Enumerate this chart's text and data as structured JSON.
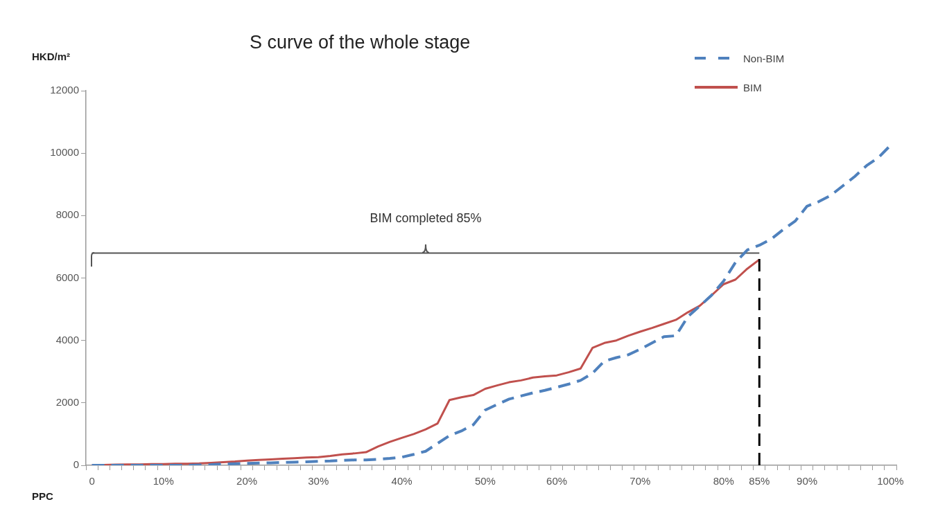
{
  "chart_data": {
    "type": "line",
    "title": "S curve of the whole stage",
    "xlabel": "PPC",
    "ylabel": "HKD/m²",
    "categories": [
      "0",
      null,
      null,
      null,
      null,
      null,
      "10%",
      null,
      null,
      null,
      null,
      null,
      null,
      "20%",
      null,
      null,
      null,
      null,
      null,
      "30%",
      null,
      null,
      null,
      null,
      null,
      null,
      "40%",
      null,
      null,
      null,
      null,
      null,
      null,
      "50%",
      null,
      null,
      null,
      null,
      null,
      "60%",
      null,
      null,
      null,
      null,
      null,
      null,
      "70%",
      null,
      null,
      null,
      null,
      null,
      null,
      "80%",
      null,
      null,
      "85%",
      null,
      null,
      null,
      "90%",
      null,
      null,
      null,
      null,
      null,
      null,
      "100%"
    ],
    "series": [
      {
        "name": "Non-BIM",
        "color": "#4f81bd",
        "line_style": "dashed",
        "values": [
          0,
          0,
          0,
          0,
          0,
          0,
          0,
          0,
          0,
          10,
          20,
          40,
          50,
          60,
          70,
          80,
          90,
          100,
          110,
          130,
          140,
          160,
          170,
          170,
          190,
          220,
          260,
          350,
          450,
          700,
          950,
          1100,
          1300,
          1770,
          1950,
          2120,
          2220,
          2320,
          2400,
          2500,
          2600,
          2720,
          2950,
          3340,
          3450,
          3540,
          3720,
          3920,
          4120,
          4150,
          4760,
          5100,
          5450,
          5900,
          6500,
          6900,
          7050,
          7250,
          7550,
          7820,
          8300,
          8450,
          8650,
          8950,
          9250,
          9600,
          9860,
          10250
        ]
      },
      {
        "name": "BIM",
        "color": "#c0504d",
        "line_style": "solid",
        "values": [
          0,
          10,
          20,
          30,
          30,
          40,
          40,
          50,
          50,
          60,
          80,
          100,
          120,
          150,
          170,
          190,
          210,
          230,
          250,
          260,
          300,
          350,
          380,
          420,
          600,
          750,
          880,
          1000,
          1150,
          1340,
          2090,
          2180,
          2250,
          2450,
          2560,
          2660,
          2720,
          2810,
          2850,
          2880,
          2980,
          3100,
          3760,
          3920,
          4000,
          4150,
          4280,
          4400,
          4530,
          4660,
          4900,
          5110,
          5450,
          5800,
          5950,
          6300,
          6590,
          null,
          null,
          null,
          null,
          null,
          null,
          null,
          null,
          null,
          null,
          null
        ]
      },
      {
        "color": "#555555",
        "line_style": "solid",
        "values": [
          6800,
          6800,
          6800,
          6800,
          6800,
          6800,
          6800,
          6800,
          6800,
          6800,
          6800,
          6800,
          6800,
          6800,
          6800,
          6800,
          6800,
          6800,
          6800,
          6800,
          6800,
          6800,
          6800,
          6800,
          6800,
          6800,
          6800,
          6800,
          6800,
          6800,
          6800,
          6800,
          6800,
          6800,
          6800,
          6800,
          6800,
          6800,
          6800,
          6800,
          6800,
          6800,
          6800,
          6800,
          6800,
          6800,
          6800,
          6800,
          6800,
          6800,
          6800,
          6800,
          6800,
          6800,
          6800,
          6800,
          6800,
          null,
          null,
          null,
          null,
          null,
          null,
          null,
          null,
          null,
          null,
          null
        ]
      }
    ],
    "ylim": [
      0,
      12000
    ],
    "yticks": [
      0,
      2000,
      4000,
      6000,
      8000,
      10000,
      12000
    ],
    "grid": false,
    "legend": "top right",
    "marker": "none",
    "ref_lines": [
      {
        "axis": "x",
        "value": "85%",
        "color": "#000000",
        "line_style": "dashed"
      }
    ],
    "annotations": [
      "BIM completed 85%"
    ]
  }
}
